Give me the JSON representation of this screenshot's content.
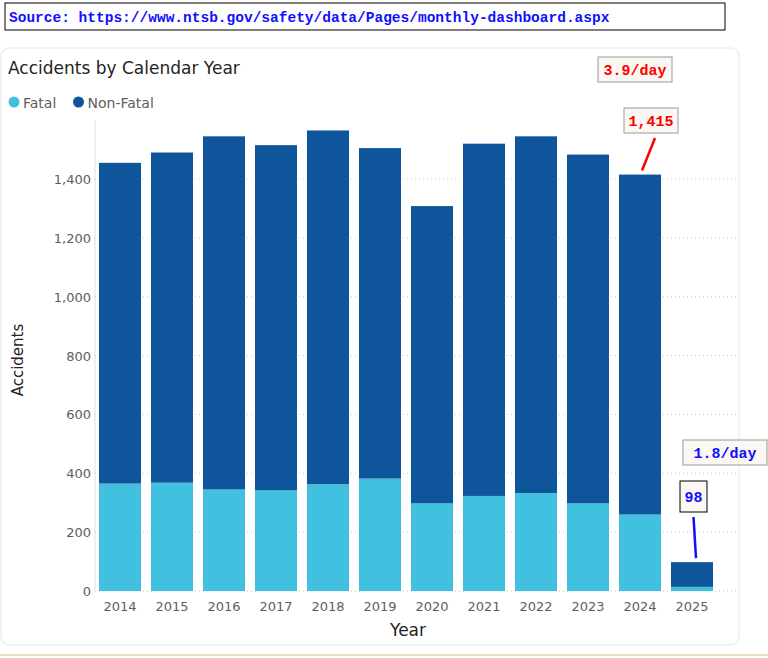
{
  "chart_data": {
    "type": "bar",
    "title": "Accidents by Calendar Year",
    "x_label": "Year",
    "y_label": "Accidents",
    "categories": [
      "2014",
      "2015",
      "2016",
      "2017",
      "2018",
      "2019",
      "2020",
      "2021",
      "2022",
      "2023",
      "2024",
      "2025"
    ],
    "series": [
      {
        "name": "Fatal",
        "color": "#41c0df",
        "values": [
          365,
          368,
          345,
          342,
          363,
          382,
          298,
          323,
          333,
          298,
          260,
          14
        ]
      },
      {
        "name": "Non-Fatal",
        "color": "#0e559b",
        "values": [
          1090,
          1122,
          1200,
          1173,
          1202,
          1123,
          1010,
          1197,
          1212,
          1185,
          1155,
          84
        ]
      }
    ],
    "stacked": true,
    "ylim": [
      0,
      1600
    ],
    "yticks": [
      0,
      200,
      400,
      600,
      800,
      {
        "value": 1000,
        "label": "1,000"
      },
      {
        "value": 1200,
        "label": "1,200"
      },
      {
        "value": 1400,
        "label": "1,400"
      }
    ],
    "grid": true,
    "legend": "top-left",
    "annotations": [
      "Source: https://www.ntsb.gov/safety/data/Pages/monthly-dashboard.aspx",
      "3.9/day",
      "1,415",
      "1.8/day",
      "98"
    ]
  }
}
